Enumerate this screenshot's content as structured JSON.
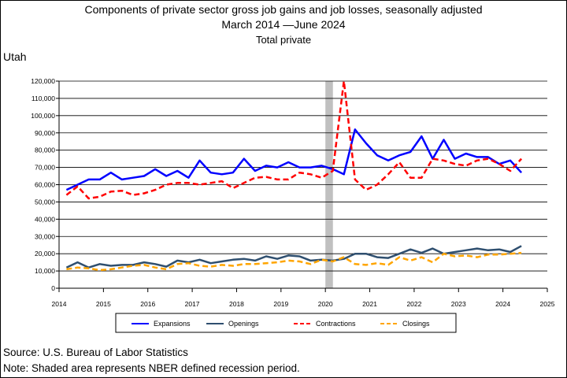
{
  "chart_data": {
    "type": "line",
    "title": "Components of private sector gross job gains and job losses, seasonally adjusted",
    "subtitle_start": "March 2014",
    "subtitle_end": "June 2024",
    "subtitle_legend_glyph": "—",
    "subtitle2": "Total private",
    "region": "Utah",
    "xlim": [
      2014,
      2025
    ],
    "ylim": [
      0,
      120000
    ],
    "x_ticks": [
      "2014",
      "2015",
      "2016",
      "2017",
      "2018",
      "2019",
      "2020",
      "2021",
      "2022",
      "2023",
      "2024",
      "2025"
    ],
    "y_ticks": [
      "0",
      "10,000",
      "20,000",
      "30,000",
      "40,000",
      "50,000",
      "60,000",
      "70,000",
      "80,000",
      "90,000",
      "100,000",
      "110,000",
      "120,000"
    ],
    "grid": "horizontal",
    "recession": {
      "start": 2020.0,
      "end": 2020.17,
      "color": "#c0c0c0"
    },
    "legend_position": "bottom",
    "x": [
      "2014-03",
      "2014-06",
      "2014-09",
      "2014-12",
      "2015-03",
      "2015-06",
      "2015-09",
      "2015-12",
      "2016-03",
      "2016-06",
      "2016-09",
      "2016-12",
      "2017-03",
      "2017-06",
      "2017-09",
      "2017-12",
      "2018-03",
      "2018-06",
      "2018-09",
      "2018-12",
      "2019-03",
      "2019-06",
      "2019-09",
      "2019-12",
      "2020-03",
      "2020-06",
      "2020-09",
      "2020-12",
      "2021-03",
      "2021-06",
      "2021-09",
      "2021-12",
      "2022-03",
      "2022-06",
      "2022-09",
      "2022-12",
      "2023-03",
      "2023-06",
      "2023-09",
      "2023-12",
      "2024-03",
      "2024-06"
    ],
    "series": [
      {
        "name": "Expansions",
        "color": "#0000ff",
        "dash": "solid",
        "values": [
          57000,
          60000,
          63000,
          63000,
          67000,
          63000,
          64000,
          65000,
          69000,
          65000,
          68000,
          64000,
          74000,
          67000,
          66000,
          67000,
          75000,
          68000,
          71000,
          70000,
          73000,
          70000,
          70000,
          71000,
          69000,
          66000,
          92000,
          84000,
          77000,
          74000,
          77000,
          79000,
          88000,
          75000,
          86000,
          75000,
          78000,
          76000,
          76000,
          72000,
          74000,
          67000
        ]
      },
      {
        "name": "Openings",
        "color": "#2f4f6f",
        "dash": "solid",
        "values": [
          12000,
          15000,
          12000,
          14000,
          13000,
          13500,
          13500,
          15000,
          14000,
          12500,
          16000,
          15000,
          16500,
          14500,
          15500,
          16500,
          17000,
          16000,
          18500,
          17000,
          19000,
          18500,
          16000,
          16500,
          16000,
          17000,
          20000,
          20000,
          18000,
          17500,
          20000,
          22500,
          20500,
          23000,
          20000,
          21000,
          22000,
          23000,
          22000,
          22500,
          21000,
          24500
        ]
      },
      {
        "name": "Contractions",
        "color": "#ff0000",
        "dash": "dashed",
        "values": [
          54000,
          59000,
          52000,
          53000,
          56000,
          56500,
          54000,
          55000,
          57000,
          60000,
          61000,
          61000,
          60000,
          61000,
          62000,
          58000,
          61000,
          64000,
          64500,
          63000,
          63000,
          67000,
          66000,
          64000,
          68000,
          120000,
          63000,
          57000,
          60000,
          66000,
          73000,
          64000,
          64000,
          75000,
          74000,
          72000,
          71000,
          74000,
          75000,
          72000,
          68000,
          75000
        ]
      },
      {
        "name": "Closings",
        "color": "#ffa500",
        "dash": "dashed",
        "values": [
          11000,
          12000,
          11500,
          10500,
          11000,
          12000,
          13000,
          13500,
          12000,
          11000,
          14000,
          14500,
          13000,
          12500,
          13500,
          13000,
          14000,
          14000,
          14500,
          15000,
          16000,
          15500,
          14000,
          16500,
          15500,
          18000,
          14000,
          13500,
          14500,
          13500,
          18000,
          16000,
          18000,
          15000,
          20000,
          18500,
          19000,
          18000,
          19500,
          19500,
          20000,
          20500
        ]
      }
    ]
  },
  "notes": {
    "source": "Source: U.S. Bureau of Labor Statistics",
    "recession_note": "Note: Shaded area represents NBER defined recession period."
  }
}
